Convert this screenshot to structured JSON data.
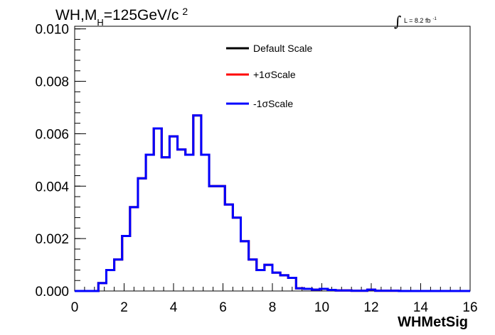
{
  "chart_data": {
    "type": "line",
    "title": {
      "prefix": "WH,M",
      "subscript": "H",
      "middle": "=125GeV/c",
      "superscript": "2"
    },
    "luminosity": {
      "symbol": "∫",
      "text": "L = 8.2 fb",
      "superscript": "-1"
    },
    "xlabel": "WHMetSig",
    "ylabel": "",
    "xlim": [
      0,
      16
    ],
    "ylim": [
      0,
      0.0101
    ],
    "x_ticks": [
      "0",
      "2",
      "4",
      "6",
      "8",
      "10",
      "12",
      "14",
      "16"
    ],
    "y_ticks": [
      "0.000",
      "0.002",
      "0.004",
      "0.006",
      "0.008",
      "0.010"
    ],
    "grid": false,
    "legend_position": "top-center",
    "bin_width": 0.32,
    "bin_edges_start": 0,
    "series": [
      {
        "name": "Default Scale",
        "color": "#000000",
        "values": [
          0,
          0,
          0,
          0.0003,
          0.0008,
          0.0012,
          0.0021,
          0.0032,
          0.0043,
          0.0052,
          0.0062,
          0.0051,
          0.0059,
          0.0054,
          0.0052,
          0.0067,
          0.0052,
          0.004,
          0.004,
          0.0033,
          0.0028,
          0.0019,
          0.0012,
          0.0008,
          0.001,
          0.0007,
          0.0006,
          0.0005,
          0.0001,
          8e-05,
          5e-05,
          8e-05,
          4e-05,
          2e-05,
          2e-05,
          1e-05,
          1e-05,
          5e-05,
          1e-05,
          1e-05,
          1e-05,
          0,
          0,
          0,
          0,
          0,
          0,
          0,
          0,
          0
        ]
      },
      {
        "name": "+1σScale",
        "color": "#ff0000",
        "values": [
          0,
          0,
          0,
          0.0003,
          0.0008,
          0.0012,
          0.0021,
          0.0032,
          0.0043,
          0.0052,
          0.0062,
          0.0051,
          0.0059,
          0.0054,
          0.0052,
          0.0067,
          0.0052,
          0.004,
          0.004,
          0.0033,
          0.0028,
          0.0019,
          0.0012,
          0.0008,
          0.001,
          0.0007,
          0.0006,
          0.0005,
          0.0001,
          8e-05,
          5e-05,
          8e-05,
          4e-05,
          2e-05,
          2e-05,
          1e-05,
          1e-05,
          5e-05,
          1e-05,
          1e-05,
          1e-05,
          0,
          0,
          0,
          0,
          0,
          0,
          0,
          0,
          0
        ]
      },
      {
        "name": "-1σScale",
        "color": "#0000ff",
        "values": [
          0,
          0,
          0,
          0.0003,
          0.0008,
          0.0012,
          0.0021,
          0.0032,
          0.0043,
          0.0052,
          0.0062,
          0.0051,
          0.0059,
          0.0054,
          0.0052,
          0.0067,
          0.0052,
          0.004,
          0.004,
          0.0033,
          0.0028,
          0.0019,
          0.0012,
          0.0008,
          0.001,
          0.0007,
          0.0006,
          0.0005,
          0.0001,
          8e-05,
          5e-05,
          8e-05,
          4e-05,
          2e-05,
          2e-05,
          1e-05,
          1e-05,
          5e-05,
          1e-05,
          1e-05,
          1e-05,
          0,
          0,
          0,
          0,
          0,
          0,
          0,
          0,
          0
        ]
      }
    ]
  }
}
